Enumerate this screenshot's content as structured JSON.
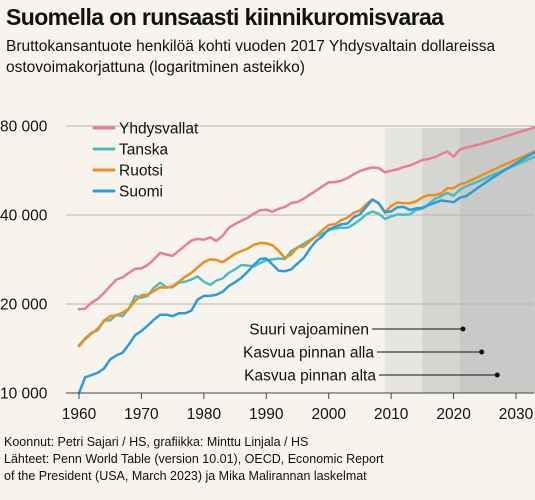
{
  "title": "Suomella on runsaasti kiinnikuromisvaraa",
  "subtitle": "Bruttokansantuote henkilöä kohti vuoden 2017 Yhdysvaltain dollareissa ostovoimakorjattuna (logaritminen asteikko)",
  "source": [
    "Koonnut: Petri Sajari / HS, grafiikka: Minttu Linjala / HS",
    "Lähteet: Penn World Table (version 10.01), OECD, Economic Report",
    "of the President (USA, March 2023) ja Mika Malirannan laskelmat"
  ],
  "colors": {
    "Yhdysvallat": "#ea7e8e",
    "Tanska": "#4cbcc3",
    "Ruotsi": "#ef8e1c",
    "Suomi": "#2c9cdc",
    "grid": "#b9b4ab",
    "band": "#c7c9c7",
    "background": "#f7f4ee"
  },
  "chart_data": {
    "type": "line",
    "title": "Suomella on runsaasti kiinnikuromisvaraa",
    "ylabel": "",
    "xlabel": "",
    "yscale": "log",
    "ylim": [
      10000,
      90000
    ],
    "xlim": [
      1960,
      2034
    ],
    "x_ticks": [
      1960,
      1970,
      1980,
      1990,
      2000,
      2010,
      2020,
      2030
    ],
    "y_ticks": [
      {
        "value": 10000,
        "label": "10 000"
      },
      {
        "value": 20000,
        "label": "20 000"
      },
      {
        "value": 40000,
        "label": "40 000"
      },
      {
        "value": 80000,
        "label": "80 000"
      }
    ],
    "grid": true,
    "legend": "top-left",
    "series": [
      {
        "name": "Yhdysvallat",
        "x": [
          1960,
          1961,
          1962,
          1963,
          1964,
          1965,
          1966,
          1967,
          1968,
          1969,
          1970,
          1971,
          1972,
          1973,
          1974,
          1975,
          1976,
          1977,
          1978,
          1979,
          1980,
          1981,
          1982,
          1983,
          1984,
          1985,
          1986,
          1987,
          1988,
          1989,
          1990,
          1991,
          1992,
          1993,
          1994,
          1995,
          1996,
          1997,
          1998,
          1999,
          2000,
          2001,
          2002,
          2003,
          2004,
          2005,
          2006,
          2007,
          2008,
          2009,
          2010,
          2011,
          2012,
          2013,
          2014,
          2015,
          2016,
          2017,
          2018,
          2019,
          2020,
          2021,
          2022,
          2024,
          2026,
          2028,
          2030,
          2032,
          2034
        ],
        "values": [
          19200,
          19300,
          20200,
          20800,
          21800,
          23000,
          24200,
          24600,
          25500,
          26300,
          26400,
          27100,
          28300,
          29800,
          29400,
          29100,
          30300,
          31500,
          32800,
          33200,
          33000,
          33600,
          32700,
          34000,
          36200,
          37300,
          38200,
          39100,
          40400,
          41500,
          41700,
          41000,
          42000,
          42600,
          43900,
          44300,
          45400,
          46900,
          48400,
          50000,
          51600,
          51700,
          52200,
          53300,
          54900,
          56300,
          57300,
          57900,
          57700,
          55800,
          56500,
          57100,
          58100,
          58800,
          60000,
          61400,
          61900,
          62800,
          64300,
          65600,
          63000,
          66600,
          67600,
          69200,
          71200,
          73400,
          75700,
          78000,
          80500
        ]
      },
      {
        "name": "Tanska",
        "x": [
          1960,
          1961,
          1962,
          1963,
          1964,
          1965,
          1966,
          1967,
          1968,
          1969,
          1970,
          1971,
          1972,
          1973,
          1974,
          1975,
          1976,
          1977,
          1978,
          1979,
          1980,
          1981,
          1982,
          1983,
          1984,
          1985,
          1986,
          1987,
          1988,
          1989,
          1990,
          1991,
          1992,
          1993,
          1994,
          1995,
          1996,
          1997,
          1998,
          1999,
          2000,
          2001,
          2002,
          2003,
          2004,
          2005,
          2006,
          2007,
          2008,
          2009,
          2010,
          2011,
          2012,
          2013,
          2014,
          2015,
          2016,
          2017,
          2018,
          2019,
          2020,
          2021,
          2022,
          2024,
          2026,
          2028,
          2030,
          2032,
          2034
        ],
        "values": [
          14500,
          15300,
          16000,
          16300,
          17600,
          17600,
          18400,
          18200,
          19300,
          21300,
          21000,
          21300,
          22700,
          23600,
          22800,
          22800,
          23600,
          23800,
          24200,
          24800,
          23800,
          23200,
          24000,
          24400,
          25500,
          26200,
          27100,
          27000,
          26800,
          27500,
          28100,
          28300,
          28500,
          28400,
          30300,
          31000,
          32000,
          32900,
          33900,
          34600,
          35500,
          36000,
          36200,
          36200,
          37200,
          38500,
          40200,
          41100,
          40400,
          38800,
          39500,
          40200,
          40100,
          40200,
          41600,
          42000,
          43500,
          45300,
          46300,
          47500,
          46500,
          48700,
          50000,
          52000,
          54300,
          56700,
          59100,
          61700,
          64300
        ]
      },
      {
        "name": "Ruotsi",
        "x": [
          1960,
          1961,
          1962,
          1963,
          1964,
          1965,
          1966,
          1967,
          1968,
          1969,
          1970,
          1971,
          1972,
          1973,
          1974,
          1975,
          1976,
          1977,
          1978,
          1979,
          1980,
          1981,
          1982,
          1983,
          1984,
          1985,
          1986,
          1987,
          1988,
          1989,
          1990,
          1991,
          1992,
          1993,
          1994,
          1995,
          1996,
          1997,
          1998,
          1999,
          2000,
          2001,
          2002,
          2003,
          2004,
          2005,
          2006,
          2007,
          2008,
          2009,
          2010,
          2011,
          2012,
          2013,
          2014,
          2015,
          2016,
          2017,
          2018,
          2019,
          2020,
          2021,
          2022,
          2024,
          2026,
          2028,
          2030,
          2032,
          2034
        ],
        "values": [
          14400,
          15200,
          15900,
          16500,
          17500,
          18200,
          18300,
          18700,
          19300,
          20500,
          21400,
          21500,
          22100,
          22800,
          22700,
          23000,
          23800,
          24700,
          25500,
          26600,
          27700,
          28300,
          28200,
          27700,
          28600,
          29600,
          30200,
          30800,
          31700,
          32200,
          32100,
          31600,
          30200,
          28600,
          29400,
          31100,
          31300,
          32600,
          34000,
          35600,
          37000,
          37200,
          38400,
          39200,
          40700,
          41400,
          43500,
          45200,
          43700,
          40800,
          42900,
          44100,
          43900,
          43800,
          44500,
          45900,
          46700,
          46700,
          47300,
          49300,
          49300,
          50800,
          51500,
          53900,
          56400,
          59000,
          61600,
          64300,
          67100
        ]
      },
      {
        "name": "Suomi",
        "x": [
          1960,
          1961,
          1962,
          1963,
          1964,
          1965,
          1966,
          1967,
          1968,
          1969,
          1970,
          1971,
          1972,
          1973,
          1974,
          1975,
          1976,
          1977,
          1978,
          1979,
          1980,
          1981,
          1982,
          1983,
          1984,
          1985,
          1986,
          1987,
          1988,
          1989,
          1990,
          1991,
          1992,
          1993,
          1994,
          1995,
          1996,
          1997,
          1998,
          1999,
          2000,
          2001,
          2002,
          2003,
          2004,
          2005,
          2006,
          2007,
          2008,
          2009,
          2010,
          2011,
          2012,
          2013,
          2014,
          2015,
          2016,
          2017,
          2018,
          2019,
          2020,
          2021,
          2022,
          2024,
          2026,
          2028,
          2030,
          2032,
          2034
        ],
        "values": [
          10000,
          11300,
          11500,
          11700,
          12100,
          13000,
          13400,
          13700,
          14600,
          15700,
          16200,
          16900,
          17700,
          18400,
          18400,
          18200,
          18600,
          18600,
          19000,
          20700,
          21300,
          21300,
          21500,
          22000,
          23000,
          23700,
          24500,
          25700,
          27100,
          28400,
          28500,
          27200,
          25900,
          25800,
          26200,
          27400,
          28600,
          30800,
          32700,
          33900,
          35800,
          36400,
          37200,
          37400,
          39300,
          40200,
          42600,
          45100,
          43900,
          40900,
          41100,
          42500,
          42600,
          41600,
          42100,
          42300,
          43200,
          44000,
          44800,
          44500,
          44200,
          45800,
          46300,
          49600,
          53000,
          56400,
          59900,
          63500,
          67000
        ]
      }
    ],
    "annotations": [
      {
        "label": "Suuri vajoaminen",
        "x_start": 2009,
        "x_end": 2034,
        "shade": 0.35
      },
      {
        "label": "Kasvua pinnan alla",
        "x_start": 2015,
        "x_end": 2034,
        "shade": 0.55
      },
      {
        "label": "Kasvua pinnan alta",
        "x_start": 2021,
        "x_end": 2033,
        "shade": 0.9
      }
    ]
  }
}
